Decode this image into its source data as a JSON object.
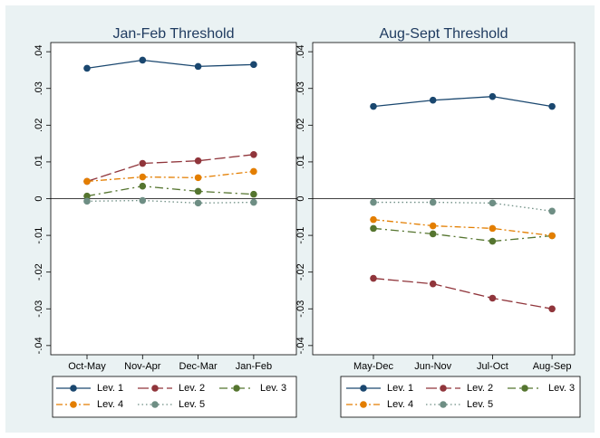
{
  "chart_data": [
    {
      "type": "line",
      "title": "Jan-Feb Threshold",
      "categories": [
        "Oct-May",
        "Nov-Apr",
        "Dec-Mar",
        "Jan-Feb"
      ],
      "ylim": [
        -0.0425,
        0.0425
      ],
      "yticks": [
        {
          "value": -0.04,
          "label": "-.04"
        },
        {
          "value": -0.03,
          "label": "-.03"
        },
        {
          "value": -0.02,
          "label": "-.02"
        },
        {
          "value": -0.01,
          "label": "-.01"
        },
        0,
        {
          "value": 0.01,
          "label": ".01"
        },
        {
          "value": 0.02,
          "label": ".02"
        },
        {
          "value": 0.03,
          "label": ".03"
        },
        {
          "value": 0.04,
          "label": ".04"
        }
      ],
      "zero_line": true,
      "series": [
        {
          "name": "Lev. 1",
          "color": "#1a476f",
          "pattern": "solid",
          "values": [
            0.0355,
            0.0377,
            0.036,
            0.0365
          ]
        },
        {
          "name": "Lev. 2",
          "color": "#90353b",
          "pattern": "longdash",
          "values": [
            0.0047,
            0.0096,
            0.0103,
            0.012
          ]
        },
        {
          "name": "Lev. 3",
          "color": "#55752f",
          "pattern": "dash",
          "values": [
            0.0007,
            0.0034,
            0.002,
            0.0012
          ]
        },
        {
          "name": "Lev. 4",
          "color": "#e37e00",
          "pattern": "dashdot",
          "values": [
            0.0047,
            0.0059,
            0.0057,
            0.0074
          ]
        },
        {
          "name": "Lev. 5",
          "color": "#6e8e84",
          "pattern": "dot",
          "values": [
            -0.0007,
            -0.0005,
            -0.0012,
            -0.001
          ]
        }
      ]
    },
    {
      "type": "line",
      "title": "Aug-Sept Threshold",
      "categories": [
        "May-Dec",
        "Jun-Nov",
        "Jul-Oct",
        "Aug-Sep"
      ],
      "ylim": [
        -0.0425,
        0.0425
      ],
      "yticks": [
        {
          "value": -0.04,
          "label": "-.04"
        },
        {
          "value": -0.03,
          "label": "-.03"
        },
        {
          "value": -0.02,
          "label": "-.02"
        },
        {
          "value": -0.01,
          "label": "-.01"
        },
        0,
        {
          "value": 0.01,
          "label": ".01"
        },
        {
          "value": 0.02,
          "label": ".02"
        },
        {
          "value": 0.03,
          "label": ".03"
        },
        {
          "value": 0.04,
          "label": ".04"
        }
      ],
      "zero_line": true,
      "series": [
        {
          "name": "Lev. 1",
          "color": "#1a476f",
          "pattern": "solid",
          "values": [
            0.0251,
            0.0268,
            0.0278,
            0.0251
          ]
        },
        {
          "name": "Lev. 2",
          "color": "#90353b",
          "pattern": "longdash",
          "values": [
            -0.0217,
            -0.0232,
            -0.0271,
            -0.03
          ]
        },
        {
          "name": "Lev. 3",
          "color": "#55752f",
          "pattern": "dash",
          "values": [
            -0.0081,
            -0.0096,
            -0.0116,
            -0.0101
          ]
        },
        {
          "name": "Lev. 4",
          "color": "#e37e00",
          "pattern": "dashdot",
          "values": [
            -0.0057,
            -0.0074,
            -0.0081,
            -0.0101
          ]
        },
        {
          "name": "Lev. 5",
          "color": "#6e8e84",
          "pattern": "dot",
          "values": [
            -0.001,
            -0.001,
            -0.0012,
            -0.0034
          ]
        }
      ]
    }
  ]
}
